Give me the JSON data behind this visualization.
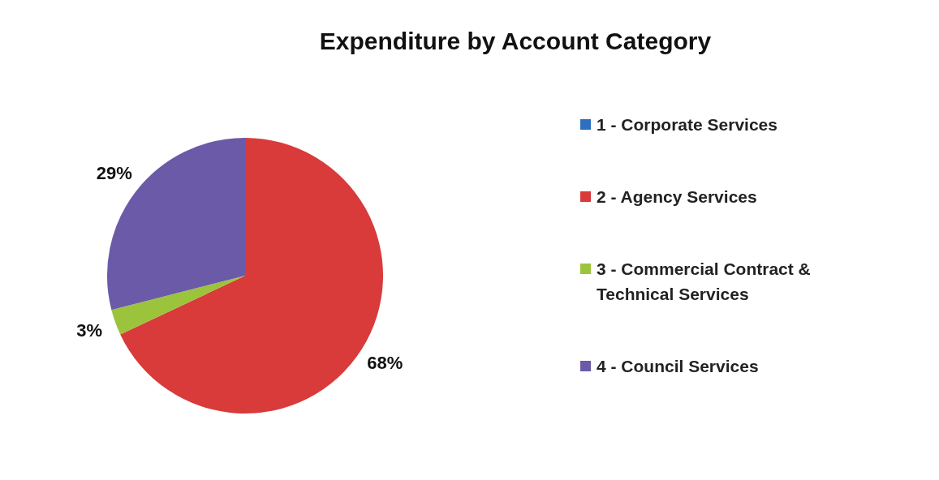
{
  "chart_data": {
    "type": "pie",
    "title": "Expenditure by Account Category",
    "categories": [
      "1 - Corporate Services",
      "2 - Agency Services",
      "3 - Commercial Contract & Technical Services",
      "4 - Council Services"
    ],
    "values": [
      0,
      68,
      3,
      29
    ],
    "colors": [
      "#2e6fc0",
      "#d93a3a",
      "#9bc43c",
      "#6a5aa8"
    ],
    "value_labels": [
      null,
      "68%",
      "3%",
      "29%"
    ],
    "legend": "right"
  }
}
